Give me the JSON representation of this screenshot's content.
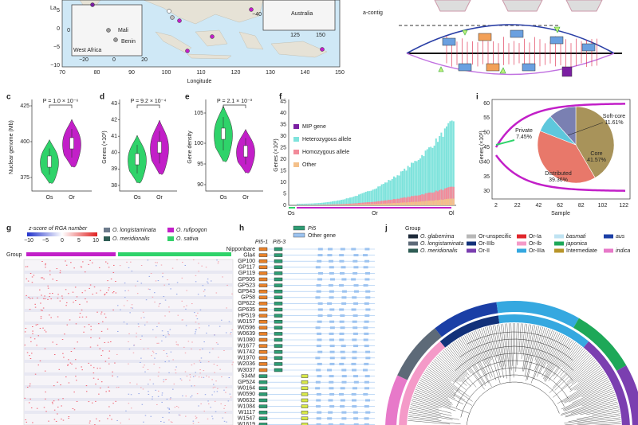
{
  "map": {
    "y_label": "La",
    "yticks": [
      "5",
      "0",
      "−5",
      "−10"
    ],
    "xticks": [
      "70",
      "80",
      "90",
      "100",
      "110",
      "120",
      "130",
      "140",
      "150"
    ],
    "x_label": "Longitude",
    "inset_africa": {
      "places": [
        "Mali",
        "Benin"
      ],
      "region": "West Africa",
      "yticks": [
        "0"
      ],
      "xticks": [
        "−20",
        "0",
        "20"
      ]
    },
    "inset_australia": {
      "region": "Australia",
      "yticks": [
        "−40"
      ],
      "xticks": [
        "125",
        "150"
      ]
    }
  },
  "contig": {
    "label": "a-contig"
  },
  "panel_c": {
    "letter": "c",
    "y_label": "Nuclear genome (Mb)",
    "yticks": [
      "425",
      "400",
      "375"
    ],
    "p_value": "P = 1.0 × 10⁻⁶",
    "groups": [
      "Os",
      "Or"
    ]
  },
  "panel_d": {
    "letter": "d",
    "y_label": "Genes (×10³)",
    "yticks": [
      "43",
      "42",
      "41",
      "40",
      "39",
      "38"
    ],
    "p_value": "P = 9.2 × 10⁻⁴",
    "groups": [
      "Os",
      "Or"
    ]
  },
  "panel_e": {
    "letter": "e",
    "y_label": "Gene density",
    "yticks": [
      "105",
      "100",
      "95",
      "90"
    ],
    "p_value": "P = 2.1 × 10⁻³",
    "groups": [
      "Os",
      "Or"
    ]
  },
  "panel_f": {
    "letter": "f",
    "y_label": "Genes (×10³)",
    "yticks": [
      "0",
      "5",
      "10",
      "15",
      "20",
      "25",
      "30",
      "35",
      "40",
      "45"
    ],
    "legend": [
      {
        "label": "MIP gene",
        "color": "#7b1fa2"
      },
      {
        "label": "Heterozygous allele",
        "color": "#7fe3dc"
      },
      {
        "label": "Homozygous allele",
        "color": "#f28b9a"
      },
      {
        "label": "Other",
        "color": "#f4c08a"
      }
    ],
    "groups": [
      "Os",
      "Or",
      "Ol"
    ]
  },
  "panel_i": {
    "letter": "i",
    "y_label": "Genes (×10³)",
    "yticks": [
      "60",
      "55",
      "50",
      "45",
      "40",
      "35",
      "30"
    ],
    "xticks": [
      "2",
      "22",
      "42",
      "62",
      "82",
      "102",
      "122"
    ],
    "x_label": "Sample"
  },
  "chart_data": {
    "type": "pie",
    "categories": [
      "Core",
      "Distributed",
      "Private",
      "Soft-core"
    ],
    "values": [
      41.57,
      39.36,
      7.45,
      11.61
    ],
    "value_labels": [
      "41.57%",
      "39.36%",
      "7.45%",
      "11.61%"
    ],
    "colors": [
      "#a8935a",
      "#e8786a",
      "#5ec7dc",
      "#7a80b2"
    ]
  },
  "panel_g": {
    "letter": "g",
    "scale_title": "z-score of RGA number",
    "scale_ticks": [
      "−10",
      "−5",
      "0",
      "5",
      "10"
    ],
    "legend": [
      {
        "label": "O. longistaminata",
        "color": "#6d7b8c"
      },
      {
        "label": "O. rufipogon",
        "color": "#c21fc8"
      },
      {
        "label": "O. meridionalis",
        "color": "#2f5d55"
      },
      {
        "label": "O. sativa",
        "color": "#34d06a"
      }
    ],
    "group_label": "Group"
  },
  "panel_h": {
    "letter": "h",
    "legend": [
      {
        "label": "Pi5",
        "color": "#2e9c73"
      },
      {
        "label": "Other gene",
        "color": "#9cc3f0"
      }
    ],
    "genes": [
      "Pi5-1",
      "Pi5-3"
    ],
    "samples": [
      "Nipponbare",
      "Gla4",
      "GP100",
      "GP117",
      "GP119",
      "GP505",
      "GP523",
      "GP543",
      "GP58",
      "GP622",
      "GP635",
      "HP519",
      "W0157",
      "W0596",
      "W0639",
      "W1080",
      "W1677",
      "W1742",
      "W1970",
      "W2036",
      "W3037",
      "534M",
      "GP524",
      "W0164",
      "W0590",
      "W0632",
      "W1084",
      "W1117",
      "W1547",
      "W1619"
    ]
  },
  "panel_j": {
    "letter": "j",
    "group_label": "Group",
    "legend_rows": [
      [
        {
          "label": "O. glaberrima",
          "color": "#1e2a3a"
        },
        {
          "label": "Or-unspecific",
          "color": "#b8b8b8"
        },
        {
          "label": "Or-Ia",
          "color": "#e0262b"
        },
        {
          "label": "basmati",
          "color": "#bfe3f2"
        },
        {
          "label": "aus",
          "color": "#1b3fa6"
        }
      ],
      [
        {
          "label": "O. longistaminata",
          "color": "#5d6a78"
        },
        {
          "label": "Or-IIIb",
          "color": "#12317a"
        },
        {
          "label": "Or-Ib",
          "color": "#f49ac8"
        },
        {
          "label": "japonica",
          "color": "#1ea858"
        }
      ],
      [
        {
          "label": "O. meridionalis",
          "color": "#2f5d55"
        },
        {
          "label": "Or-II",
          "color": "#7b3fb0"
        },
        {
          "label": "Or-IIIa",
          "color": "#35a8e0"
        },
        {
          "label": "Intermediate",
          "color": "#b8952a"
        },
        {
          "label": "indica",
          "color": "#e779c9"
        }
      ]
    ]
  }
}
